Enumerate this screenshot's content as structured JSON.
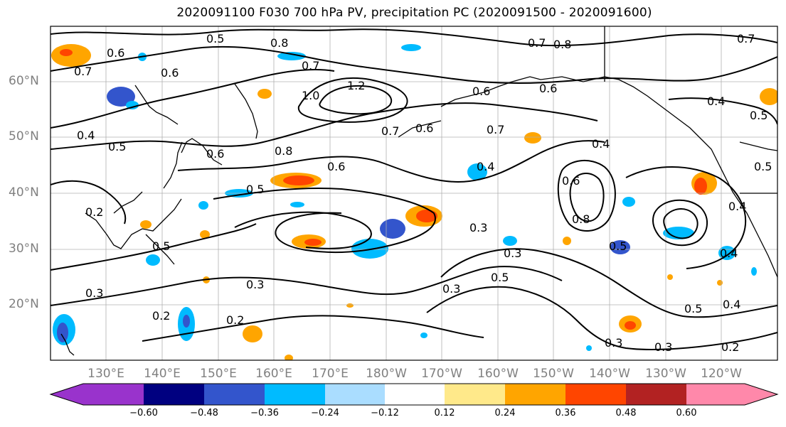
{
  "title": "2020091100 F030 700 hPa PV, precipitation PC (2020091500 - 2020091600)",
  "map": {
    "lat_labels": [
      "60°N",
      "50°N",
      "40°N",
      "30°N",
      "20°N"
    ],
    "lon_labels": [
      "130°E",
      "140°E",
      "150°E",
      "160°E",
      "170°E",
      "180°W",
      "170°W",
      "160°W",
      "150°W",
      "140°W",
      "130°W",
      "120°W"
    ],
    "contour_labels": [
      "0.5",
      "0.6",
      "0.8",
      "0.7",
      "0.8",
      "0.7",
      "0.6",
      "0.7",
      "1.2",
      "1.0",
      "0.7",
      "0.6",
      "0.7",
      "0.4",
      "0.5",
      "0.4",
      "0.6",
      "0.8",
      "0.6",
      "0.5",
      "0.6",
      "0.7",
      "0.4",
      "0.5",
      "0.5",
      "0.6",
      "0.8",
      "0.4",
      "0.4",
      "0.3",
      "0.2",
      "0.3",
      "0.3",
      "0.5",
      "0.3",
      "0.2",
      "0.3",
      "0.5",
      "0.2",
      "0.3",
      "0.3",
      "0.2",
      "0.4",
      "0.5",
      "0.5",
      "0.4",
      "0.6"
    ],
    "contour_color": "#000000",
    "land_color": "#000000",
    "grid_color": "#b0b0b0"
  },
  "colorbar": {
    "ticks": [
      "−0.60",
      "−0.48",
      "−0.36",
      "−0.24",
      "−0.12",
      "0.12",
      "0.24",
      "0.36",
      "0.48",
      "0.60"
    ],
    "colors": [
      "#9933cc",
      "#000080",
      "#3355cc",
      "#00bbff",
      "#aaddff",
      "#ffffff",
      "#ffe98a",
      "#ffa500",
      "#ff4500",
      "#b22222",
      "#ff88aa"
    ]
  }
}
